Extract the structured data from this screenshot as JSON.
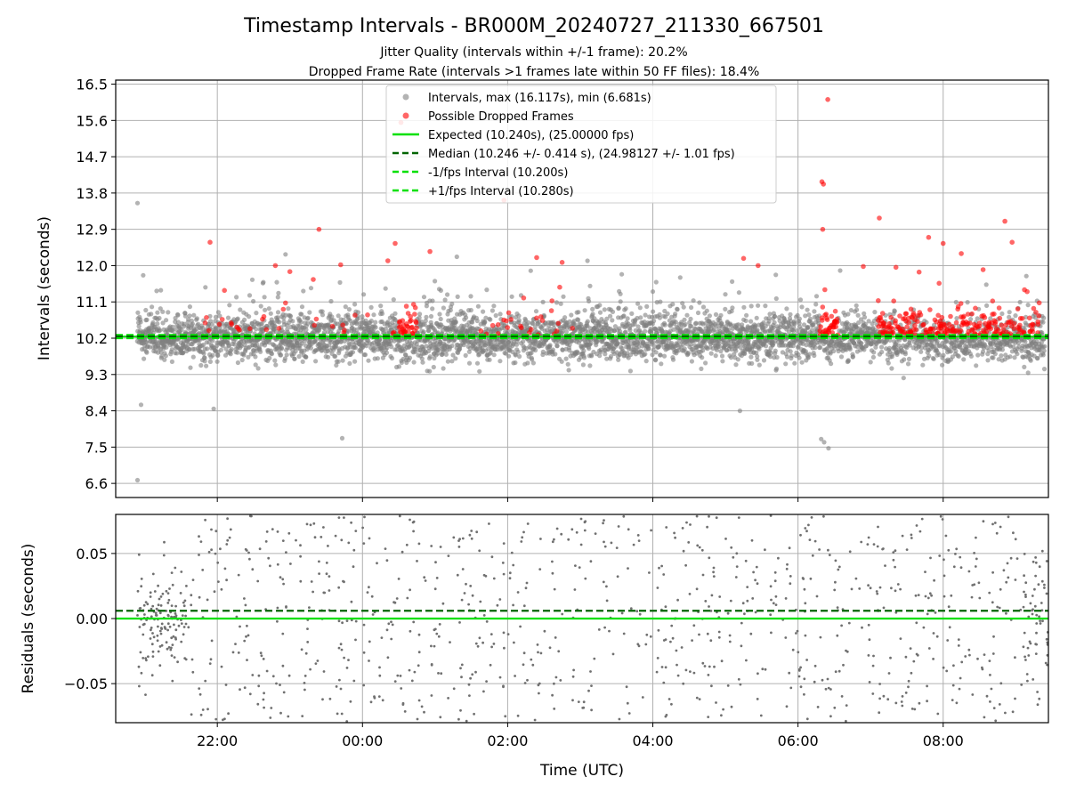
{
  "figure": {
    "title": "Timestamp Intervals - BR000M_20240727_211330_667501",
    "subtitle_1": "Jitter Quality (intervals within +/-1 frame): 20.2%",
    "subtitle_2": "Dropped Frame Rate (intervals >1 frames late within 50 FF files): 18.4%"
  },
  "chart_data": [
    {
      "type": "scatter",
      "ylabel": "Intervals (seconds)",
      "xlabel": "",
      "xlim_hours": [
        -3.4,
        9.45
      ],
      "ylim": [
        6.25,
        16.6
      ],
      "yticks": [
        "6.6",
        "7.5",
        "8.4",
        "9.3",
        "10.2",
        "11.1",
        "12.0",
        "12.9",
        "13.8",
        "14.7",
        "15.6",
        "16.5"
      ],
      "xticks_hours": [
        -2,
        0,
        2,
        4,
        6,
        8
      ],
      "grid": true,
      "legend_position": "top-center",
      "legend": [
        {
          "label": "Intervals, max (16.117s), min (6.681s)",
          "style": "marker",
          "color": "#808080"
        },
        {
          "label": "Possible Dropped Frames",
          "style": "marker",
          "color": "#ff0000"
        },
        {
          "label": "Expected (10.240s), (25.00000 fps)",
          "style": "solid",
          "color": "#00e000"
        },
        {
          "label": "Median (10.246 +/- 0.414 s), (24.98127 +/- 1.01 fps)",
          "style": "dashed",
          "color": "#006400"
        },
        {
          "label": "-1/fps Interval (10.200s)",
          "style": "dashed",
          "color": "#00e000"
        },
        {
          "label": "+1/fps Interval (10.280s)",
          "style": "dashed",
          "color": "#00e000"
        }
      ],
      "reference_lines": {
        "expected": 10.24,
        "median": 10.246,
        "minus_one_fps": 10.2,
        "plus_one_fps": 10.28
      },
      "approx_points": 4500,
      "start_time": "21:13",
      "end_time": "09:25",
      "max_interval": 16.117,
      "min_interval": 6.681,
      "red_outliers": [
        {
          "t": 0.53,
          "y": 15.55
        },
        {
          "t": 6.41,
          "y": 16.12
        },
        {
          "t": 6.33,
          "y": 14.08
        },
        {
          "t": 6.35,
          "y": 14.02
        },
        {
          "t": 7.12,
          "y": 13.18
        },
        {
          "t": 8.85,
          "y": 13.1
        },
        {
          "t": 6.34,
          "y": 12.9
        },
        {
          "t": 1.95,
          "y": 13.62
        },
        {
          "t": -0.6,
          "y": 12.9
        },
        {
          "t": -2.1,
          "y": 12.58
        },
        {
          "t": 7.8,
          "y": 12.7
        },
        {
          "t": 8.0,
          "y": 12.55
        },
        {
          "t": 8.95,
          "y": 12.58
        },
        {
          "t": 0.45,
          "y": 12.55
        },
        {
          "t": 0.93,
          "y": 12.35
        },
        {
          "t": 8.25,
          "y": 12.3
        },
        {
          "t": 5.25,
          "y": 12.18
        },
        {
          "t": 2.4,
          "y": 12.2
        },
        {
          "t": 2.75,
          "y": 12.08
        },
        {
          "t": 5.45,
          "y": 12.0
        },
        {
          "t": -1.2,
          "y": 12.0
        },
        {
          "t": -0.3,
          "y": 12.02
        },
        {
          "t": 0.35,
          "y": 12.12
        },
        {
          "t": 6.9,
          "y": 11.98
        },
        {
          "t": 7.35,
          "y": 11.96
        },
        {
          "t": 8.55,
          "y": 11.9
        },
        {
          "t": -1.0,
          "y": 11.85
        }
      ],
      "gray_outliers": [
        {
          "t": -3.1,
          "y": 13.55
        },
        {
          "t": -3.1,
          "y": 6.68
        },
        {
          "t": -3.05,
          "y": 8.55
        },
        {
          "t": -0.28,
          "y": 7.72
        },
        {
          "t": 6.32,
          "y": 7.7
        },
        {
          "t": 6.36,
          "y": 7.62
        },
        {
          "t": 6.42,
          "y": 7.47
        },
        {
          "t": -1.06,
          "y": 12.28
        },
        {
          "t": 1.3,
          "y": 12.22
        },
        {
          "t": -2.05,
          "y": 8.45
        },
        {
          "t": 3.1,
          "y": 12.12
        },
        {
          "t": 5.2,
          "y": 8.4
        }
      ]
    },
    {
      "type": "scatter",
      "ylabel": "Residuals (seconds)",
      "xlabel": "Time (UTC)",
      "xlim_hours": [
        -3.4,
        9.45
      ],
      "ylim": [
        -0.08,
        0.08
      ],
      "yticks": [
        "0.05",
        "0.00",
        "−0.05"
      ],
      "ytick_values": [
        0.05,
        0.0,
        -0.05
      ],
      "xtick_labels": [
        "22:00",
        "00:00",
        "02:00",
        "04:00",
        "06:00",
        "08:00"
      ],
      "grid": true,
      "reference_lines": {
        "expected": 0.0,
        "median": 0.006
      },
      "approx_points": 1100
    }
  ],
  "colors": {
    "gray_point": "#808080",
    "red_point": "#ff0000",
    "expected_line": "#00e000",
    "median_line": "#006400",
    "grid": "#b0b0b0"
  }
}
